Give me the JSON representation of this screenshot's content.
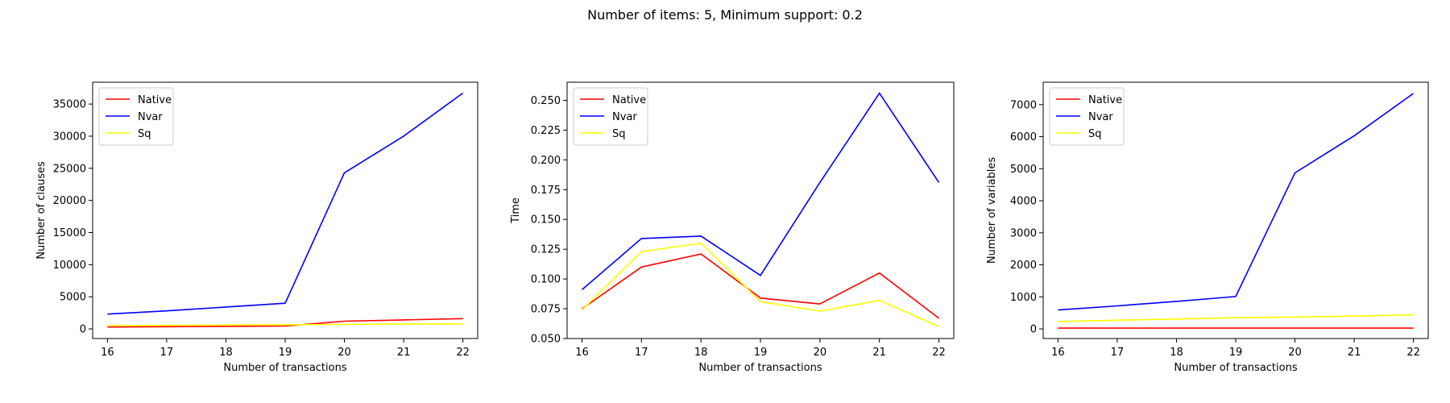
{
  "suptitle": "Number of items: 5, Minimum support: 0.2",
  "chart_data": [
    {
      "type": "line",
      "xlabel": "Number of transactions",
      "ylabel": "Number of clauses",
      "x": [
        16,
        17,
        18,
        19,
        20,
        21,
        22
      ],
      "xlim": [
        15.75,
        22.25
      ],
      "ylim": [
        -1500,
        38400
      ],
      "yticks": [
        0,
        5000,
        10000,
        15000,
        20000,
        25000,
        30000,
        35000
      ],
      "ytick_labels": [
        "0",
        "5000",
        "10000",
        "15000",
        "20000",
        "25000",
        "30000",
        "35000"
      ],
      "grid": false,
      "legend": "top-left",
      "series": [
        {
          "name": "Native",
          "color": "#ff0000",
          "values": [
            300,
            350,
            400,
            450,
            1200,
            1400,
            1600
          ]
        },
        {
          "name": "Nvar",
          "color": "#0000ff",
          "values": [
            2300,
            2800,
            3400,
            4000,
            24300,
            30000,
            36700
          ]
        },
        {
          "name": "Sq",
          "color": "#ffff00",
          "values": [
            500,
            550,
            600,
            650,
            700,
            750,
            800
          ]
        }
      ]
    },
    {
      "type": "line",
      "xlabel": "Number of transactions",
      "ylabel": "Time",
      "x": [
        16,
        17,
        18,
        19,
        20,
        21,
        22
      ],
      "xlim": [
        15.75,
        22.25
      ],
      "ylim": [
        0.05,
        0.2652
      ],
      "yticks": [
        0.05,
        0.075,
        0.1,
        0.125,
        0.15,
        0.175,
        0.2,
        0.225,
        0.25
      ],
      "ytick_labels": [
        "0.050",
        "0.075",
        "0.100",
        "0.125",
        "0.150",
        "0.175",
        "0.200",
        "0.225",
        "0.250"
      ],
      "grid": false,
      "legend": "top-left",
      "series": [
        {
          "name": "Native",
          "color": "#ff0000",
          "values": [
            0.075,
            0.11,
            0.121,
            0.084,
            0.079,
            0.105,
            0.067
          ]
        },
        {
          "name": "Nvar",
          "color": "#0000ff",
          "values": [
            0.091,
            0.134,
            0.136,
            0.103,
            0.181,
            0.256,
            0.181
          ]
        },
        {
          "name": "Sq",
          "color": "#ffff00",
          "values": [
            0.074,
            0.123,
            0.13,
            0.081,
            0.073,
            0.082,
            0.06
          ]
        }
      ]
    },
    {
      "type": "line",
      "xlabel": "Number of transactions",
      "ylabel": "Number of variables",
      "x": [
        16,
        17,
        18,
        19,
        20,
        21,
        22
      ],
      "xlim": [
        15.75,
        22.25
      ],
      "ylim": [
        -300,
        7700
      ],
      "yticks": [
        0,
        1000,
        2000,
        3000,
        4000,
        5000,
        6000,
        7000
      ],
      "ytick_labels": [
        "0",
        "1000",
        "2000",
        "3000",
        "4000",
        "5000",
        "6000",
        "7000"
      ],
      "grid": false,
      "legend": "top-left",
      "series": [
        {
          "name": "Native",
          "color": "#ff0000",
          "values": [
            25,
            25,
            25,
            25,
            25,
            25,
            25
          ]
        },
        {
          "name": "Nvar",
          "color": "#0000ff",
          "values": [
            590,
            720,
            860,
            1010,
            4870,
            6030,
            7350
          ]
        },
        {
          "name": "Sq",
          "color": "#ffff00",
          "values": [
            230,
            270,
            310,
            350,
            370,
            400,
            440
          ]
        }
      ]
    }
  ]
}
